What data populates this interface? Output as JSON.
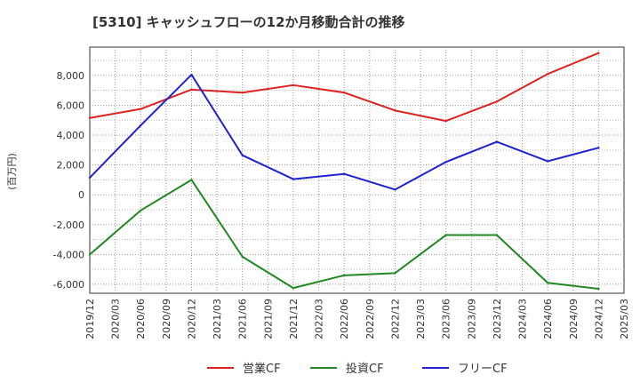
{
  "chart_data": {
    "type": "line",
    "title": "[5310]  キャッシュフローの12か月移動合計の推移",
    "ylabel": "(百万円)",
    "xlabel": "",
    "x_ticks": [
      "2019/12",
      "2020/03",
      "2020/06",
      "2020/09",
      "2020/12",
      "2021/03",
      "2021/06",
      "2021/09",
      "2021/12",
      "2022/03",
      "2022/06",
      "2022/09",
      "2022/12",
      "2023/03",
      "2023/06",
      "2023/09",
      "2023/12",
      "2024/03",
      "2024/06",
      "2024/09",
      "2024/12",
      "2025/03"
    ],
    "y_ticks": [
      "-6,000",
      "-4,000",
      "-2,000",
      "0",
      "2,000",
      "4,000",
      "6,000",
      "8,000"
    ],
    "y_tick_values": [
      -6000,
      -4000,
      -2000,
      0,
      2000,
      4000,
      6000,
      8000
    ],
    "ylim": [
      -6600,
      9900
    ],
    "grid": true,
    "series": [
      {
        "name": "営業CF",
        "color": "#dd2222",
        "x": [
          "2019/12",
          "2020/06",
          "2020/12",
          "2021/06",
          "2021/12",
          "2022/06",
          "2022/12",
          "2023/06",
          "2023/12",
          "2024/06",
          "2024/12"
        ],
        "values": [
          5150,
          5750,
          7050,
          6850,
          7350,
          6850,
          5650,
          4950,
          6250,
          8100,
          9500
        ]
      },
      {
        "name": "投資CF",
        "color": "#228822",
        "x": [
          "2019/12",
          "2020/06",
          "2020/12",
          "2021/06",
          "2021/12",
          "2022/06",
          "2022/12",
          "2023/06",
          "2023/12",
          "2024/06",
          "2024/12"
        ],
        "values": [
          -4000,
          -1050,
          1000,
          -4150,
          -6250,
          -5400,
          -5250,
          -2700,
          -2700,
          -5900,
          -6300
        ]
      },
      {
        "name": "フリーCF",
        "color": "#2222cc",
        "x": [
          "2019/12",
          "2020/06",
          "2020/12",
          "2021/06",
          "2021/12",
          "2022/06",
          "2022/12",
          "2023/06",
          "2023/12",
          "2024/06",
          "2024/12"
        ],
        "values": [
          1150,
          4650,
          8050,
          2650,
          1050,
          1400,
          350,
          2200,
          3550,
          2250,
          3150
        ]
      }
    ],
    "legend": [
      "営業CF",
      "投資CF",
      "フリーCF"
    ],
    "legend_position": "bottom"
  }
}
